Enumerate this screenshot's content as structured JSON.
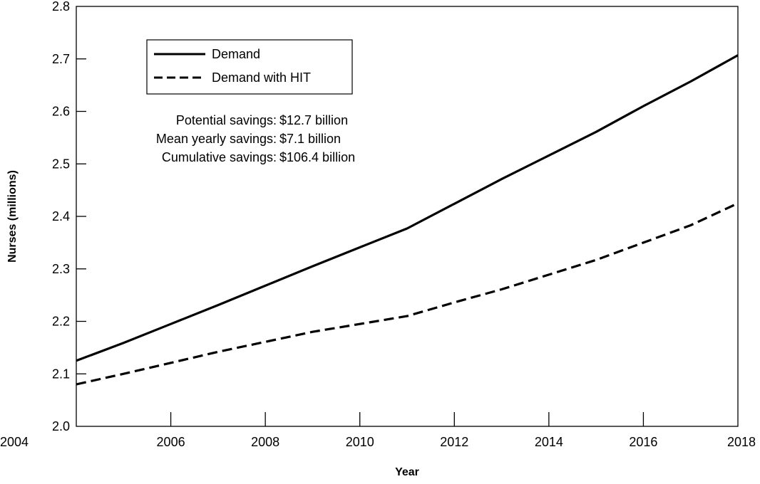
{
  "chart_data": {
    "type": "line",
    "title": "",
    "xlabel": "Year",
    "ylabel": "Nurses (millions)",
    "xlim": [
      2004,
      2018
    ],
    "ylim": [
      2.0,
      2.8
    ],
    "x_ticks": [
      2004,
      2006,
      2008,
      2010,
      2012,
      2014,
      2016,
      2018
    ],
    "y_ticks": [
      2.0,
      2.1,
      2.2,
      2.3,
      2.4,
      2.5,
      2.6,
      2.7,
      2.8
    ],
    "x_tick_labels": [
      "2004",
      "2006",
      "2008",
      "2010",
      "2012",
      "2014",
      "2016",
      "2018"
    ],
    "y_tick_labels": [
      "2.0",
      "2.1",
      "2.2",
      "2.3",
      "2.4",
      "2.5",
      "2.6",
      "2.7",
      "2.8"
    ],
    "grid": false,
    "legend_position": "top-left",
    "x": [
      2004,
      2005,
      2006,
      2007,
      2008,
      2009,
      2010,
      2011,
      2012,
      2013,
      2014,
      2015,
      2016,
      2017,
      2018
    ],
    "series": [
      {
        "name": "Demand",
        "line_style": "solid",
        "color": "#000000",
        "values": [
          2.125,
          2.159,
          2.195,
          2.231,
          2.268,
          2.305,
          2.341,
          2.377,
          2.424,
          2.471,
          2.516,
          2.561,
          2.61,
          2.657,
          2.707
        ]
      },
      {
        "name": "Demand with HIT",
        "line_style": "dashed",
        "color": "#000000",
        "values": [
          2.08,
          2.1,
          2.121,
          2.142,
          2.161,
          2.18,
          2.195,
          2.21,
          2.236,
          2.261,
          2.289,
          2.317,
          2.35,
          2.383,
          2.425
        ]
      }
    ],
    "annotations": [
      {
        "label": "Potential savings:",
        "value": "$12.7 billion"
      },
      {
        "label": "Mean yearly savings:",
        "value": "$7.1 billion"
      },
      {
        "label": "Cumulative savings:",
        "value": "$106.4 billion"
      }
    ]
  }
}
